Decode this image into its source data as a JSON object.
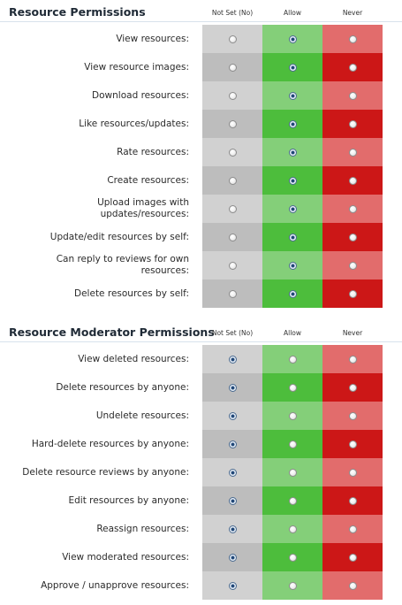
{
  "columns": [
    "Not Set (No)",
    "Allow",
    "Never"
  ],
  "sections": [
    {
      "title": "Resource Permissions",
      "rows": [
        {
          "label": "View resources:",
          "selected": 1
        },
        {
          "label": "View resource images:",
          "selected": 1
        },
        {
          "label": "Download resources:",
          "selected": 1
        },
        {
          "label": "Like resources/updates:",
          "selected": 1
        },
        {
          "label": "Rate resources:",
          "selected": 1
        },
        {
          "label": "Create resources:",
          "selected": 1
        },
        {
          "label": "Upload images with updates/resources:",
          "selected": 1
        },
        {
          "label": "Update/edit resources by self:",
          "selected": 1
        },
        {
          "label": "Can reply to reviews for own resources:",
          "selected": 1
        },
        {
          "label": "Delete resources by self:",
          "selected": 1
        }
      ]
    },
    {
      "title": "Resource Moderator Permissions",
      "rows": [
        {
          "label": "View deleted resources:",
          "selected": 0
        },
        {
          "label": "Delete resources by anyone:",
          "selected": 0
        },
        {
          "label": "Undelete resources:",
          "selected": 0
        },
        {
          "label": "Hard-delete resources by anyone:",
          "selected": 0
        },
        {
          "label": "Delete resource reviews by anyone:",
          "selected": 0
        },
        {
          "label": "Edit resources by anyone:",
          "selected": 0
        },
        {
          "label": "Reassign resources:",
          "selected": 0
        },
        {
          "label": "View moderated resources:",
          "selected": 0
        },
        {
          "label": "Approve / unapprove resources:",
          "selected": 0
        }
      ]
    }
  ]
}
